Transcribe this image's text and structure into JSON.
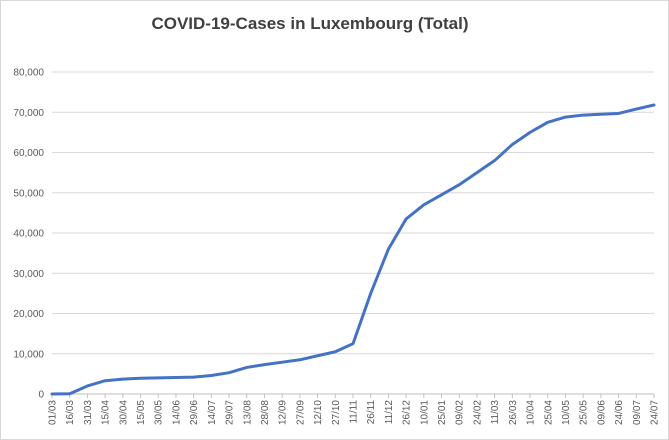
{
  "chart_data": {
    "type": "line",
    "title": "COVID-19-Cases in Luxembourg (Total)",
    "xlabel": "",
    "ylabel": "",
    "ylim": [
      0,
      80000
    ],
    "yticks": [
      "0",
      "10,000",
      "20,000",
      "30,000",
      "40,000",
      "50,000",
      "60,000",
      "70,000",
      "80,000"
    ],
    "grid": "horizontal",
    "legend": "none",
    "line_color": "#4472c4",
    "xticks": [
      "01/03",
      "16/03",
      "31/03",
      "15/04",
      "30/04",
      "15/05",
      "30/05",
      "14/06",
      "29/06",
      "14/07",
      "29/07",
      "13/08",
      "28/08",
      "12/09",
      "27/09",
      "12/10",
      "27/10",
      "11/11",
      "26/11",
      "11/12",
      "26/12",
      "10/01",
      "25/01",
      "09/02",
      "24/02",
      "11/03",
      "26/03",
      "10/04",
      "25/04",
      "10/05",
      "25/05",
      "09/06",
      "24/06",
      "09/07",
      "24/07"
    ],
    "series": [
      {
        "values": [
          0,
          50,
          2000,
          3300,
          3700,
          3900,
          4000,
          4100,
          4200,
          4600,
          5300,
          6600,
          7300,
          7900,
          8500,
          9500,
          10500,
          12500,
          25000,
          36000,
          43500,
          47000,
          49500,
          52000,
          55000,
          58000,
          62000,
          65000,
          67500,
          68800,
          69300,
          69500,
          69700,
          70800,
          71800
        ]
      }
    ]
  }
}
